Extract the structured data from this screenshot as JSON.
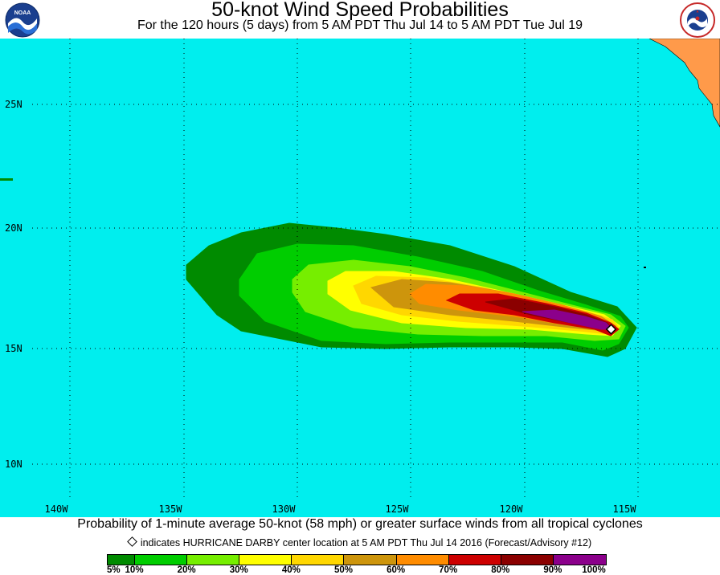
{
  "header": {
    "title": "50-knot Wind Speed Probabilities",
    "subtitle": "For the 120 hours (5 days) from 5 AM PDT Thu Jul 14 to 5 AM PDT Tue Jul 19",
    "left_logo": "NOAA",
    "right_logo": "NATIONAL WEATHER SERVICE"
  },
  "map": {
    "ocean_color": "#00eeee",
    "land_color": "#ff9a4a",
    "lat_labels": [
      "25N",
      "20N",
      "15N",
      "10N"
    ],
    "lon_labels": [
      "140W",
      "135W",
      "130W",
      "125W",
      "120W",
      "115W"
    ],
    "storm_center": {
      "name": "HURRICANE DARBY",
      "lon": -116.2,
      "lat": 15.8
    }
  },
  "footer": {
    "caption": "Probability of 1-minute average 50-knot (58 mph) or greater surface winds from all tropical cyclones",
    "center_note": "indicates HURRICANE DARBY center location at 5 AM PDT Thu Jul 14 2016 (Forecast/Advisory #12)"
  },
  "legend": {
    "bins": [
      {
        "color": "#008b00",
        "label": "5%"
      },
      {
        "color": "#00cd00",
        "label": "10%"
      },
      {
        "color": "#76ee00",
        "label": "20%"
      },
      {
        "color": "#ffff00",
        "label": "30%"
      },
      {
        "color": "#ffd700",
        "label": "40%"
      },
      {
        "color": "#cd950c",
        "label": "50%"
      },
      {
        "color": "#ff8c00",
        "label": "60%"
      },
      {
        "color": "#cd0000",
        "label": "70%"
      },
      {
        "color": "#8b0000",
        "label": "80%"
      },
      {
        "color": "#8b008b",
        "label": "90%"
      }
    ],
    "end_label": "100%"
  }
}
